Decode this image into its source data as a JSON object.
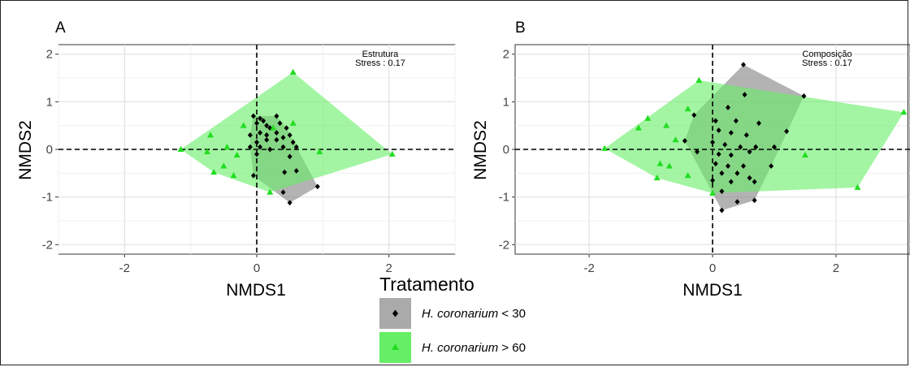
{
  "chart_data": [
    {
      "type": "scatter",
      "panel_label": "A",
      "title": "",
      "annotation": {
        "line1": "Estrutura",
        "line2": "Stress : 0.17"
      },
      "xlabel": "NMDS1",
      "ylabel": "NMDS2",
      "xlim": [
        -3.0,
        3.0
      ],
      "ylim": [
        -2.2,
        2.2
      ],
      "x_ticks": [
        -2,
        0,
        2
      ],
      "y_ticks": [
        -2,
        -1,
        0,
        1,
        2
      ],
      "x_tick_labels": [
        "-2",
        "0",
        "2"
      ],
      "y_tick_labels": [
        "-2",
        "-1",
        "0",
        "1",
        "2"
      ],
      "grid": true,
      "reference_lines": {
        "x": 0,
        "y": 0
      },
      "series": [
        {
          "name": "H. coronarium < 30",
          "marker": "diamond",
          "color": "#000000",
          "hull_color": "#808080",
          "points": [
            [
              -0.05,
              0.7
            ],
            [
              0.05,
              0.65
            ],
            [
              0.1,
              0.6
            ],
            [
              0.3,
              0.7
            ],
            [
              0.0,
              0.55
            ],
            [
              0.15,
              0.5
            ],
            [
              0.2,
              0.45
            ],
            [
              0.35,
              0.55
            ],
            [
              0.45,
              0.45
            ],
            [
              -0.1,
              0.3
            ],
            [
              0.05,
              0.35
            ],
            [
              0.15,
              0.3
            ],
            [
              0.3,
              0.35
            ],
            [
              0.5,
              0.3
            ],
            [
              0.0,
              0.15
            ],
            [
              0.15,
              0.2
            ],
            [
              0.3,
              0.2
            ],
            [
              0.4,
              0.25
            ],
            [
              0.55,
              0.15
            ],
            [
              -0.1,
              0.05
            ],
            [
              0.05,
              0.05
            ],
            [
              0.2,
              0.0
            ],
            [
              0.4,
              0.05
            ],
            [
              0.6,
              0.05
            ],
            [
              0.0,
              -0.1
            ],
            [
              0.5,
              -0.15
            ],
            [
              -0.05,
              -0.55
            ],
            [
              0.6,
              -0.45
            ],
            [
              0.4,
              -0.9
            ],
            [
              0.5,
              -1.12
            ],
            [
              0.92,
              -0.78
            ],
            [
              0.42,
              -0.48
            ]
          ]
        },
        {
          "name": "H. coronarium > 60",
          "marker": "triangle",
          "color": "#22dd22",
          "hull_color": "#66ee66",
          "points": [
            [
              0.55,
              1.62
            ],
            [
              2.05,
              -0.1
            ],
            [
              -1.15,
              0.0
            ],
            [
              -0.7,
              0.3
            ],
            [
              -0.75,
              -0.05
            ],
            [
              -0.45,
              0.05
            ],
            [
              -0.2,
              0.5
            ],
            [
              -0.3,
              -0.12
            ],
            [
              -0.5,
              -0.35
            ],
            [
              -0.65,
              -0.48
            ],
            [
              -0.35,
              -0.55
            ],
            [
              0.25,
              0.45
            ],
            [
              0.2,
              -0.9
            ],
            [
              0.95,
              -0.05
            ],
            [
              0.55,
              0.55
            ]
          ]
        }
      ]
    },
    {
      "type": "scatter",
      "panel_label": "B",
      "title": "",
      "annotation": {
        "line1": "Composição",
        "line2": "Stress : 0.17"
      },
      "xlabel": "NMDS1",
      "ylabel": "NMDS2",
      "xlim": [
        -3.2,
        3.2
      ],
      "ylim": [
        -2.2,
        2.2
      ],
      "x_ticks": [
        -2,
        0,
        2
      ],
      "y_ticks": [
        -2,
        -1,
        0,
        1,
        2
      ],
      "x_tick_labels": [
        "-2",
        "0",
        "2"
      ],
      "y_tick_labels": [
        "-2",
        "-1",
        "0",
        "1",
        "2"
      ],
      "grid": true,
      "reference_lines": {
        "x": 0,
        "y": 0
      },
      "series": [
        {
          "name": "H. coronarium < 30",
          "marker": "diamond",
          "color": "#000000",
          "hull_color": "#808080",
          "points": [
            [
              0.5,
              1.78
            ],
            [
              1.48,
              1.12
            ],
            [
              0.52,
              1.15
            ],
            [
              0.25,
              0.88
            ],
            [
              -0.3,
              0.72
            ],
            [
              0.05,
              0.6
            ],
            [
              0.38,
              0.6
            ],
            [
              0.75,
              0.55
            ],
            [
              0.1,
              0.4
            ],
            [
              0.3,
              0.35
            ],
            [
              0.55,
              0.3
            ],
            [
              1.2,
              0.38
            ],
            [
              -0.45,
              0.18
            ],
            [
              0.0,
              0.15
            ],
            [
              0.2,
              0.1
            ],
            [
              0.45,
              0.05
            ],
            [
              0.7,
              0.05
            ],
            [
              1.0,
              0.05
            ],
            [
              -0.25,
              -0.05
            ],
            [
              0.1,
              -0.1
            ],
            [
              0.3,
              -0.12
            ],
            [
              0.6,
              -0.05
            ],
            [
              0.05,
              -0.3
            ],
            [
              0.25,
              -0.35
            ],
            [
              0.5,
              -0.35
            ],
            [
              0.95,
              -0.35
            ],
            [
              0.15,
              -0.5
            ],
            [
              0.4,
              -0.5
            ],
            [
              0.6,
              -0.6
            ],
            [
              0.0,
              -0.65
            ],
            [
              0.3,
              -0.68
            ],
            [
              0.68,
              -0.68
            ],
            [
              0.15,
              -0.88
            ],
            [
              0.4,
              -1.1
            ],
            [
              0.68,
              -1.07
            ],
            [
              0.15,
              -1.28
            ]
          ]
        },
        {
          "name": "H. coronarium > 60",
          "marker": "triangle",
          "color": "#22dd22",
          "hull_color": "#66ee66",
          "points": [
            [
              -1.75,
              0.02
            ],
            [
              -0.22,
              1.45
            ],
            [
              3.1,
              0.78
            ],
            [
              2.35,
              -0.8
            ],
            [
              0.0,
              -0.92
            ],
            [
              -1.05,
              0.65
            ],
            [
              -1.2,
              0.45
            ],
            [
              -0.75,
              0.5
            ],
            [
              -0.4,
              0.85
            ],
            [
              -0.6,
              0.2
            ],
            [
              -0.85,
              -0.3
            ],
            [
              -0.7,
              -0.35
            ],
            [
              -0.9,
              -0.6
            ],
            [
              -0.4,
              -0.55
            ],
            [
              1.5,
              -0.12
            ]
          ]
        }
      ]
    }
  ],
  "legend": {
    "title": "Tratamento",
    "items": [
      {
        "italic": "H. coronarium",
        "suffix": " < 30",
        "swatch": "#aaaaaa",
        "marker": "diamond",
        "marker_color": "#000000"
      },
      {
        "italic": "H. coronarium",
        "suffix": " > 60",
        "swatch": "#66ee66",
        "marker": "triangle",
        "marker_color": "#22dd22"
      }
    ]
  }
}
